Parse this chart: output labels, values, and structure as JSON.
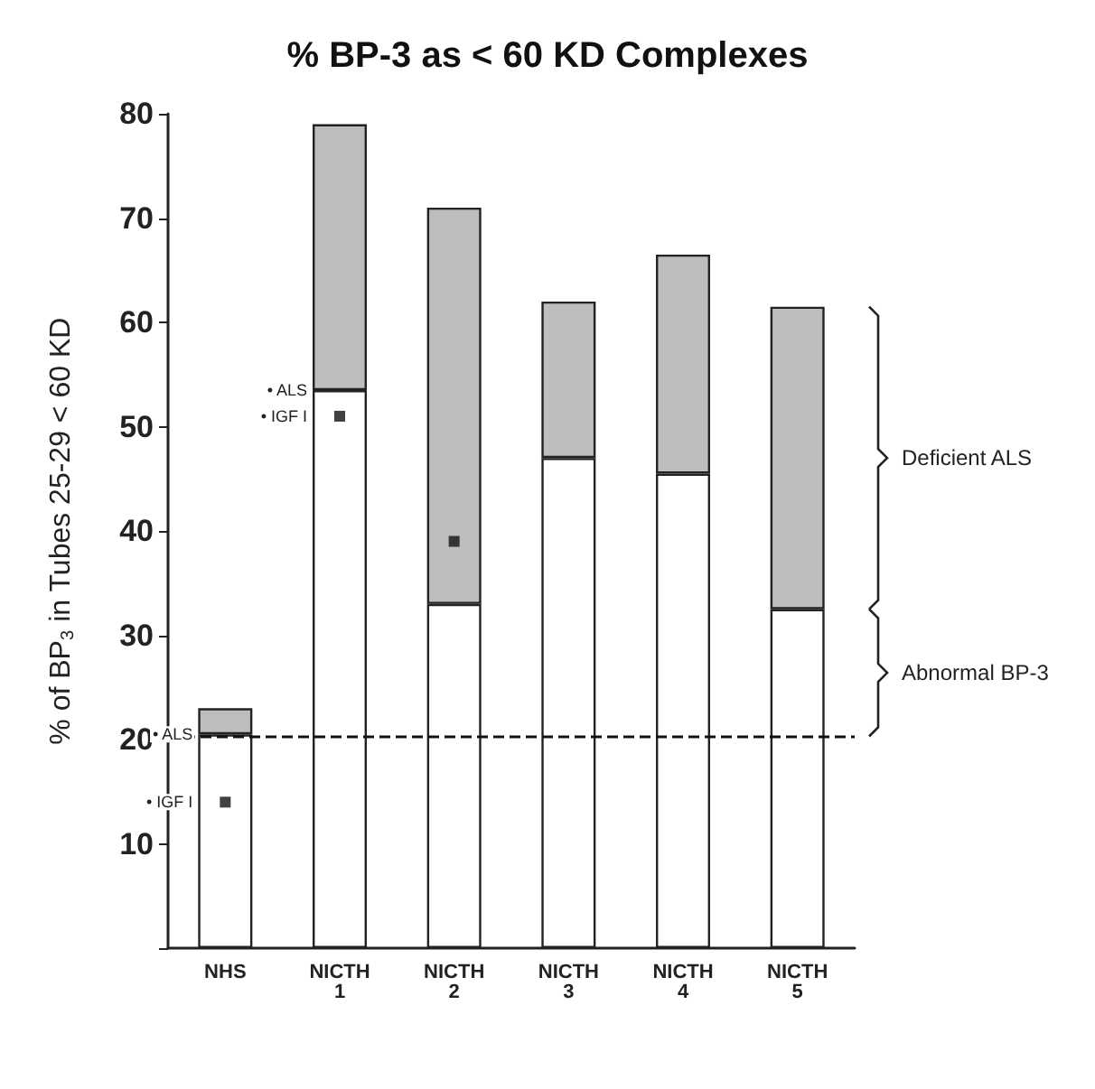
{
  "chart_data": {
    "type": "bar",
    "title": "% BP-3 as < 60 KD Complexes",
    "ylabel": "% of BP$_{3}$ in Tubes 25-29 < 60 KD",
    "categories": [
      "NHS",
      "NICTH 1",
      "NICTH 2",
      "NICTH 3",
      "NICTH 4",
      "NICTH 5"
    ],
    "stacked": true,
    "series": [
      {
        "color": "#ffffff",
        "values": [
          20.5,
          53.5,
          33,
          47,
          45.5,
          32.5
        ]
      },
      {
        "color": "#bdbdbd",
        "values": [
          2.5,
          25.5,
          38,
          15,
          21,
          29
        ]
      },
      {
        "type": "scatter",
        "color": "#111111",
        "marker": "square",
        "values": [
          14,
          51,
          39,
          null,
          null,
          null
        ]
      }
    ],
    "ylim": [
      0,
      80
    ],
    "yticks": [
      {
        "value": 0,
        "label": null
      },
      10,
      20,
      30,
      40,
      50,
      60,
      70,
      80
    ],
    "grid": false,
    "ref_lines": [
      {
        "axis": "y",
        "value": 20.3,
        "line_style": "dashed",
        "color": "#111111"
      }
    ],
    "annotations": [
      "Deficient ALS",
      "Abnormal BP-3",
      {
        "text": "• ALS",
        "x": "NHS",
        "y": 20.5
      },
      {
        "text": "• IGF I",
        "x": "NHS",
        "y": 14
      },
      {
        "text": "• ALS",
        "x": "NICTH 1",
        "y": 53.5
      },
      {
        "text": "• IGF I",
        "x": "NICTH 1",
        "y": 51
      }
    ]
  }
}
